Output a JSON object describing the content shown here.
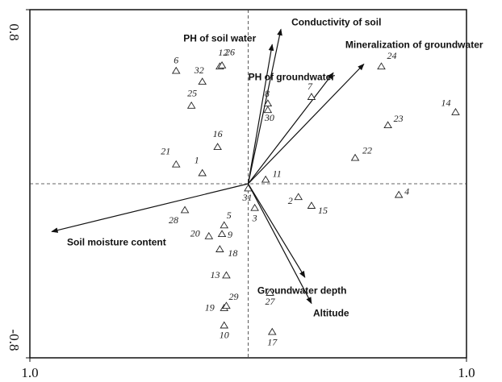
{
  "chart_data": {
    "type": "biplot",
    "xlim": [
      -1,
      1
    ],
    "ylim": [
      -0.8,
      0.8
    ],
    "xticks": [
      {
        "value": -1,
        "label": "1.0"
      },
      {
        "value": 1,
        "label": "1.0"
      }
    ],
    "yticks": [
      -0.8,
      0.8
    ],
    "points": [
      {
        "label": "1",
        "x": -0.21,
        "y": 0.05
      },
      {
        "label": "2",
        "x": 0.23,
        "y": -0.06
      },
      {
        "label": "3",
        "x": 0.03,
        "y": -0.11
      },
      {
        "label": "4",
        "x": 0.69,
        "y": -0.05
      },
      {
        "label": "5",
        "x": -0.11,
        "y": -0.19
      },
      {
        "label": "6",
        "x": -0.33,
        "y": 0.52
      },
      {
        "label": "7",
        "x": 0.29,
        "y": 0.4
      },
      {
        "label": "8",
        "x": 0.09,
        "y": 0.37
      },
      {
        "label": "9",
        "x": -0.12,
        "y": -0.23
      },
      {
        "label": "10",
        "x": -0.11,
        "y": -0.65
      },
      {
        "label": "11",
        "x": 0.08,
        "y": 0.02
      },
      {
        "label": "12",
        "x": -0.13,
        "y": 0.54
      },
      {
        "label": "13",
        "x": -0.1,
        "y": -0.42
      },
      {
        "label": "14",
        "x": 0.95,
        "y": 0.33
      },
      {
        "label": "15",
        "x": 0.29,
        "y": -0.1
      },
      {
        "label": "16",
        "x": -0.14,
        "y": 0.17
      },
      {
        "label": "17",
        "x": 0.11,
        "y": -0.68
      },
      {
        "label": "18",
        "x": -0.13,
        "y": -0.3
      },
      {
        "label": "19",
        "x": -0.11,
        "y": -0.57
      },
      {
        "label": "20",
        "x": -0.18,
        "y": -0.24
      },
      {
        "label": "21",
        "x": -0.33,
        "y": 0.09
      },
      {
        "label": "22",
        "x": 0.49,
        "y": 0.12
      },
      {
        "label": "23",
        "x": 0.64,
        "y": 0.27
      },
      {
        "label": "24",
        "x": 0.61,
        "y": 0.54
      },
      {
        "label": "25",
        "x": -0.26,
        "y": 0.36
      },
      {
        "label": "26",
        "x": -0.12,
        "y": 0.545
      },
      {
        "label": "27",
        "x": 0.1,
        "y": -0.5
      },
      {
        "label": "28",
        "x": -0.29,
        "y": -0.12
      },
      {
        "label": "29",
        "x": -0.1,
        "y": -0.56
      },
      {
        "label": "30",
        "x": 0.09,
        "y": 0.34
      },
      {
        "label": "31",
        "x": 0.0,
        "y": -0.02
      },
      {
        "label": "32",
        "x": -0.21,
        "y": 0.47
      }
    ],
    "arrows": [
      {
        "name": "Conductivity of soil",
        "x": 0.15,
        "y": 0.71
      },
      {
        "name": "PH of soil water",
        "x": 0.11,
        "y": 0.64
      },
      {
        "name": "PH of groundwater",
        "x": 0.39,
        "y": 0.51
      },
      {
        "name": "Mineralization of groundwater",
        "x": 0.53,
        "y": 0.55
      },
      {
        "name": "Soil moisture content",
        "x": -0.9,
        "y": -0.22
      },
      {
        "name": "Groundwater depth",
        "x": 0.26,
        "y": -0.43
      },
      {
        "name": "Altitude",
        "x": 0.29,
        "y": -0.55
      }
    ]
  }
}
